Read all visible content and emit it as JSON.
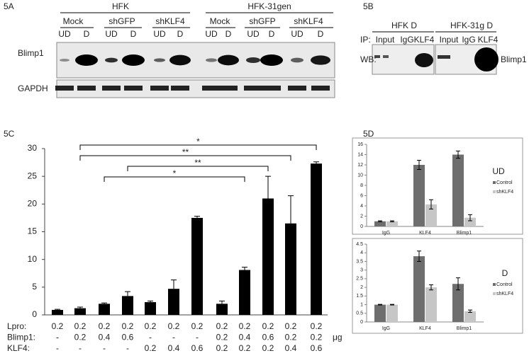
{
  "panels": {
    "a": {
      "label": "5A",
      "groups": [
        "HFK",
        "HFK-31gen"
      ],
      "subgroups": [
        "Mock",
        "shGFP",
        "shKLF4",
        "Mock",
        "shGFP",
        "shKLF4"
      ],
      "lanes": [
        "UD",
        "D",
        "UD",
        "D",
        "UD",
        "D",
        "UD",
        "D",
        "UD",
        "D",
        "UD",
        "D"
      ],
      "rows": [
        "Blimp1",
        "GAPDH"
      ]
    },
    "b": {
      "label": "5B",
      "groups": [
        "HFK D",
        "HFK-31g D"
      ],
      "ip": "IP:",
      "lanes": [
        "Input",
        "IgG",
        "KLF4",
        "Input",
        "IgG",
        "KLF4"
      ],
      "wb": "WB:",
      "row": "Blimp1"
    },
    "c": {
      "label": "5C"
    },
    "d": {
      "label": "5D"
    }
  },
  "chart_data": [
    {
      "type": "bar",
      "values": [
        0.9,
        1.2,
        2.0,
        3.4,
        2.3,
        4.7,
        17.5,
        2.0,
        8.1,
        21.0,
        16.5,
        27.3
      ],
      "errors": [
        0.1,
        0.2,
        0.15,
        0.8,
        0.2,
        1.6,
        0.3,
        0.5,
        0.5,
        4.0,
        5.0,
        0.3
      ],
      "color": "#000000",
      "ylim": [
        0,
        30
      ],
      "yticks": [
        0,
        5,
        10,
        15,
        20,
        25,
        30
      ],
      "annotations": [
        {
          "text": "*",
          "from": 1,
          "to": 11
        },
        {
          "text": "**",
          "from": 1,
          "to": 10
        },
        {
          "text": "**",
          "from": 3,
          "to": 9
        },
        {
          "text": "*",
          "from": 2,
          "to": 8
        }
      ],
      "table": {
        "rows": [
          {
            "label": "Lpro:",
            "cells": [
              "0.2",
              "0.2",
              "0.2",
              "0.2",
              "0.2",
              "0.2",
              "0.2",
              "0.2",
              "0.2",
              "0.2",
              "0.2",
              "0.2"
            ]
          },
          {
            "label": "Blimp1:",
            "cells": [
              "-",
              "0.2",
              "0.4",
              "0.6",
              "-",
              "-",
              "-",
              "0.2",
              "0.4",
              "0.6",
              "0.2",
              "0.2"
            ],
            "unit": "μg"
          },
          {
            "label": "KLF4:",
            "cells": [
              "-",
              "-",
              "-",
              "-",
              "0.2",
              "0.4",
              "0.6",
              "0.2",
              "0.2",
              "0.2",
              "0.4",
              "0.6"
            ]
          }
        ]
      }
    },
    {
      "type": "bar",
      "title": "UD",
      "categories": [
        "IgG",
        "KLF4",
        "Blimp1"
      ],
      "ylim": [
        0,
        16
      ],
      "yticks": [
        0,
        2,
        4,
        6,
        8,
        10,
        12,
        14,
        16
      ],
      "series": [
        {
          "name": "Control",
          "color": "#6e6e6e",
          "values": [
            1.0,
            12.0,
            14.0
          ],
          "errors": [
            0.1,
            0.9,
            0.7
          ]
        },
        {
          "name": "shKLF4",
          "color": "#c6c6c6",
          "values": [
            1.0,
            4.3,
            1.7
          ],
          "errors": [
            0.1,
            0.9,
            0.6
          ]
        }
      ]
    },
    {
      "type": "bar",
      "title": "D",
      "categories": [
        "IgG",
        "KLF4",
        "Blimp1"
      ],
      "ylim": [
        0,
        4.5
      ],
      "yticks": [
        0,
        0.5,
        1,
        1.5,
        2,
        2.5,
        3,
        3.5,
        4,
        4.5
      ],
      "series": [
        {
          "name": "Control",
          "color": "#6e6e6e",
          "values": [
            1.0,
            3.8,
            2.2
          ],
          "errors": [
            0.02,
            0.3,
            0.35
          ]
        },
        {
          "name": "shKLF4",
          "color": "#c6c6c6",
          "values": [
            1.0,
            2.0,
            0.62
          ],
          "errors": [
            0.02,
            0.15,
            0.07
          ]
        }
      ]
    }
  ]
}
